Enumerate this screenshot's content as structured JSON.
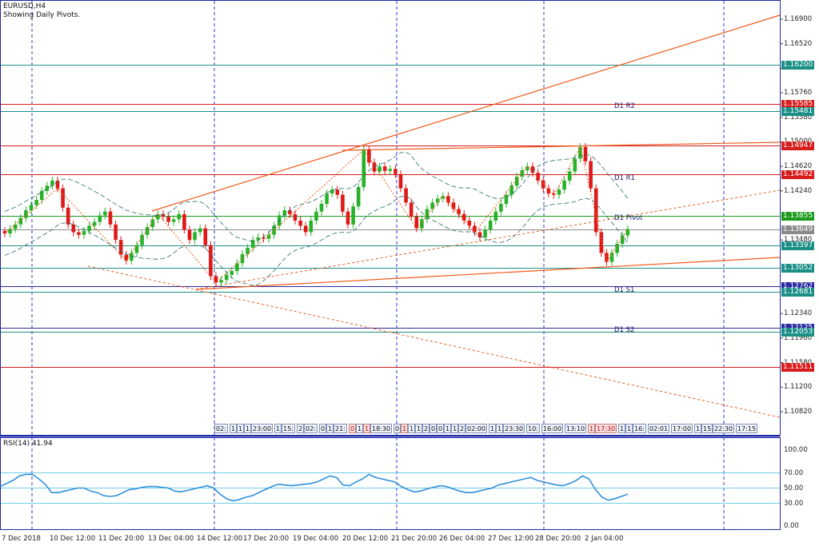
{
  "header": {
    "symbol_timeframe": "EURUSD,H4",
    "indicator_note": "Showing Daily Pivots."
  },
  "price_axis": {
    "ticks": [
      {
        "label": "1.16900",
        "price": 1.169
      },
      {
        "label": "1.16520",
        "price": 1.1652
      },
      {
        "label": "1.16140",
        "price": 1.1614
      },
      {
        "label": "1.15760",
        "price": 1.1576
      },
      {
        "label": "1.15380",
        "price": 1.1538
      },
      {
        "label": "1.15000",
        "price": 1.15
      },
      {
        "label": "1.14620",
        "price": 1.1462
      },
      {
        "label": "1.14240",
        "price": 1.1424
      },
      {
        "label": "1.13480",
        "price": 1.1348
      },
      {
        "label": "1.12340",
        "price": 1.1234
      },
      {
        "label": "1.11960",
        "price": 1.1196
      },
      {
        "label": "1.11580",
        "price": 1.1158
      },
      {
        "label": "1.11200",
        "price": 1.112
      },
      {
        "label": "1.10820",
        "price": 1.1082
      }
    ]
  },
  "price_levels": [
    {
      "label": "1.16200",
      "price": 1.162,
      "color": "#1a8f86"
    },
    {
      "label": "1.15585",
      "price": 1.15585,
      "color": "#d71c1c"
    },
    {
      "label": "1.15481",
      "price": 1.15481,
      "color": "#1a8f86"
    },
    {
      "label": "1.14947",
      "price": 1.14947,
      "color": "#d71c1c"
    },
    {
      "label": "1.14492",
      "price": 1.14492,
      "color": "#d71c1c"
    },
    {
      "label": "1.13855",
      "price": 1.13855,
      "color": "#1b9a1b"
    },
    {
      "label": "1.13649",
      "price": 1.13649,
      "color": "#8a8a8a"
    },
    {
      "label": "1.13397",
      "price": 1.13397,
      "color": "#1a8f86"
    },
    {
      "label": "1.13052",
      "price": 1.13052,
      "color": "#1a8f86"
    },
    {
      "label": "1.12762",
      "price": 1.12762,
      "color": "#2a2aa0"
    },
    {
      "label": "1.12681",
      "price": 1.12681,
      "color": "#1a8f86"
    },
    {
      "label": "1.12125",
      "price": 1.12125,
      "color": "#2a2aa0"
    },
    {
      "label": "1.12053",
      "price": 1.12053,
      "color": "#1a8f86"
    },
    {
      "label": "1.11511",
      "price": 1.11511,
      "color": "#d71c1c"
    }
  ],
  "pivot_labels": {
    "r2": "D1 R2",
    "r1": "D1 R1",
    "pivot": "D1 Pivot",
    "s1": "D1 S1",
    "s2": "D1 S2"
  },
  "candles": [
    1.1358,
    1.1365,
    1.1372,
    1.1382,
    1.1394,
    1.1402,
    1.141,
    1.1424,
    1.1432,
    1.144,
    1.1428,
    1.1398,
    1.1372,
    1.136,
    1.1356,
    1.1362,
    1.137,
    1.1376,
    1.1386,
    1.1392,
    1.1372,
    1.1348,
    1.1325,
    1.1316,
    1.1328,
    1.134,
    1.1356,
    1.1368,
    1.138,
    1.1388,
    1.1384,
    1.1376,
    1.138,
    1.1388,
    1.1364,
    1.1348,
    1.136,
    1.1366,
    1.134,
    1.1292,
    1.1282,
    1.1286,
    1.1294,
    1.13,
    1.1312,
    1.1326,
    1.1336,
    1.1348,
    1.1352,
    1.135,
    1.1356,
    1.137,
    1.1386,
    1.1394,
    1.1388,
    1.1378,
    1.137,
    1.136,
    1.1378,
    1.1392,
    1.1404,
    1.142,
    1.1426,
    1.1418,
    1.1392,
    1.1372,
    1.14,
    1.143,
    1.1488,
    1.1468,
    1.1454,
    1.1462,
    1.1455,
    1.1458,
    1.145,
    1.1428,
    1.1406,
    1.1384,
    1.1366,
    1.138,
    1.1396,
    1.1406,
    1.1412,
    1.1416,
    1.1406,
    1.1396,
    1.1388,
    1.1378,
    1.137,
    1.136,
    1.1352,
    1.1364,
    1.1378,
    1.1392,
    1.1404,
    1.1418,
    1.1432,
    1.1446,
    1.1456,
    1.1462,
    1.1452,
    1.144,
    1.1428,
    1.142,
    1.1418,
    1.1426,
    1.144,
    1.1454,
    1.1474,
    1.1492,
    1.147,
    1.1428,
    1.136,
    1.1328,
    1.1314,
    1.1328,
    1.1342,
    1.1355,
    1.1365
  ],
  "rsi": {
    "label": "RSI(14) 41.94",
    "levels": [
      {
        "label": "100.00",
        "v": 100
      },
      {
        "label": "70.00",
        "v": 70
      },
      {
        "label": "50.00",
        "v": 50
      },
      {
        "label": "30.00",
        "v": 30
      },
      {
        "label": "0.00",
        "v": 0
      }
    ],
    "values": [
      52,
      56,
      60,
      66,
      68,
      68,
      62,
      55,
      44,
      44,
      46,
      48,
      50,
      50,
      46,
      44,
      40,
      39,
      40,
      44,
      48,
      49,
      51,
      52,
      52,
      51,
      50,
      46,
      45,
      47,
      49,
      51,
      53,
      50,
      42,
      36,
      33,
      35,
      38,
      40,
      44,
      48,
      52,
      55,
      54,
      53,
      54,
      55,
      56,
      58,
      62,
      66,
      64,
      54,
      53,
      58,
      62,
      68,
      64,
      62,
      60,
      58,
      52,
      48,
      45,
      46,
      49,
      51,
      53,
      52,
      49,
      46,
      44,
      44,
      46,
      48,
      50,
      54,
      56,
      58,
      60,
      62,
      64,
      60,
      58,
      56,
      54,
      53,
      56,
      60,
      66,
      62,
      48,
      38,
      34,
      36,
      39,
      42
    ]
  },
  "time_axis": {
    "labels": [
      "7 Dec 2018",
      "10 Dec 12:00",
      "11 Dec 20:00",
      "13 Dec 04:00",
      "14 Dec 12:00",
      "17 Dec 20:00",
      "19 Dec 04:00",
      "20 Dec 12:00",
      "21 Dec 20:00",
      "26 Dec 04:00",
      "27 Dec 12:00",
      "28 Dec 20:00",
      "2 Jan 04:00"
    ]
  },
  "session_boxes": [
    {
      "t": "02:",
      "red": false
    },
    {
      "t": "1",
      "red": false
    },
    {
      "t": "1",
      "red": false
    },
    {
      "t": "1",
      "red": false
    },
    {
      "t": "23:00",
      "red": false
    },
    {
      "t": "1",
      "red": false
    },
    {
      "t": "15:",
      "red": false
    },
    {
      "t": "2",
      "red": false
    },
    {
      "t": "02:",
      "red": false
    },
    {
      "t": "0",
      "red": false
    },
    {
      "t": "1",
      "red": false
    },
    {
      "t": "21:",
      "red": false
    },
    {
      "t": "0",
      "red": true
    },
    {
      "t": "1",
      "red": false
    },
    {
      "t": "1",
      "red": true
    },
    {
      "t": "18:30",
      "red": false
    },
    {
      "t": "0",
      "red": false
    },
    {
      "t": "1",
      "red": true
    },
    {
      "t": "1",
      "red": false
    },
    {
      "t": "1",
      "red": false
    },
    {
      "t": "2",
      "red": false
    },
    {
      "t": "0",
      "red": false
    },
    {
      "t": "0",
      "red": false
    },
    {
      "t": "1",
      "red": false
    },
    {
      "t": "1",
      "red": false
    },
    {
      "t": "2",
      "red": false
    },
    {
      "t": "02:00",
      "red": false
    },
    {
      "t": "1",
      "red": false
    },
    {
      "t": "1",
      "red": false
    },
    {
      "t": "23:30",
      "red": false
    },
    {
      "t": "10:",
      "red": false
    },
    {
      "t": "16:00",
      "red": false
    },
    {
      "t": "13:10",
      "red": false
    },
    {
      "t": "1",
      "red": true
    },
    {
      "t": "17:30",
      "red": true
    },
    {
      "t": "1",
      "red": false
    },
    {
      "t": "1",
      "red": false
    },
    {
      "t": "16:",
      "red": false
    },
    {
      "t": "02:01",
      "red": false
    },
    {
      "t": "17:00",
      "red": false
    },
    {
      "t": "1",
      "red": false
    },
    {
      "t": "15",
      "red": false
    },
    {
      "t": "22:30",
      "red": false
    },
    {
      "t": "17:15",
      "red": false
    }
  ],
  "colors": {
    "bull": "#27b327",
    "bear": "#e01818",
    "trend": "#f05a1a",
    "grid": "#2b3bd1",
    "rsi": "#2f8fdc",
    "frame": "#1f2aa8"
  }
}
